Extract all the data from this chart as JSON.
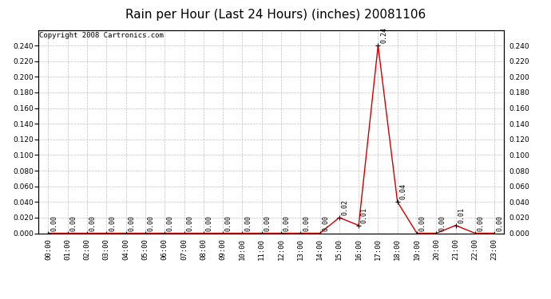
{
  "title": "Rain per Hour (Last 24 Hours) (inches) 20081106",
  "copyright": "Copyright 2008 Cartronics.com",
  "hours": [
    "00:00",
    "01:00",
    "02:00",
    "03:00",
    "04:00",
    "05:00",
    "06:00",
    "07:00",
    "08:00",
    "09:00",
    "10:00",
    "11:00",
    "12:00",
    "13:00",
    "14:00",
    "15:00",
    "16:00",
    "17:00",
    "18:00",
    "19:00",
    "20:00",
    "21:00",
    "22:00",
    "23:00"
  ],
  "values": [
    0.0,
    0.0,
    0.0,
    0.0,
    0.0,
    0.0,
    0.0,
    0.0,
    0.0,
    0.0,
    0.0,
    0.0,
    0.0,
    0.0,
    0.0,
    0.02,
    0.01,
    0.24,
    0.04,
    0.0,
    0.0,
    0.01,
    0.0,
    0.0
  ],
  "line_color": "#cc0000",
  "marker_color": "#000000",
  "bg_color": "#ffffff",
  "grid_color": "#c0c0c0",
  "ylim": [
    0.0,
    0.26
  ],
  "yticks": [
    0.0,
    0.02,
    0.04,
    0.06,
    0.08,
    0.1,
    0.12,
    0.14,
    0.16,
    0.18,
    0.2,
    0.22,
    0.24
  ],
  "title_fontsize": 11,
  "copyright_fontsize": 6.5,
  "label_fontsize": 6,
  "tick_fontsize": 6.5
}
